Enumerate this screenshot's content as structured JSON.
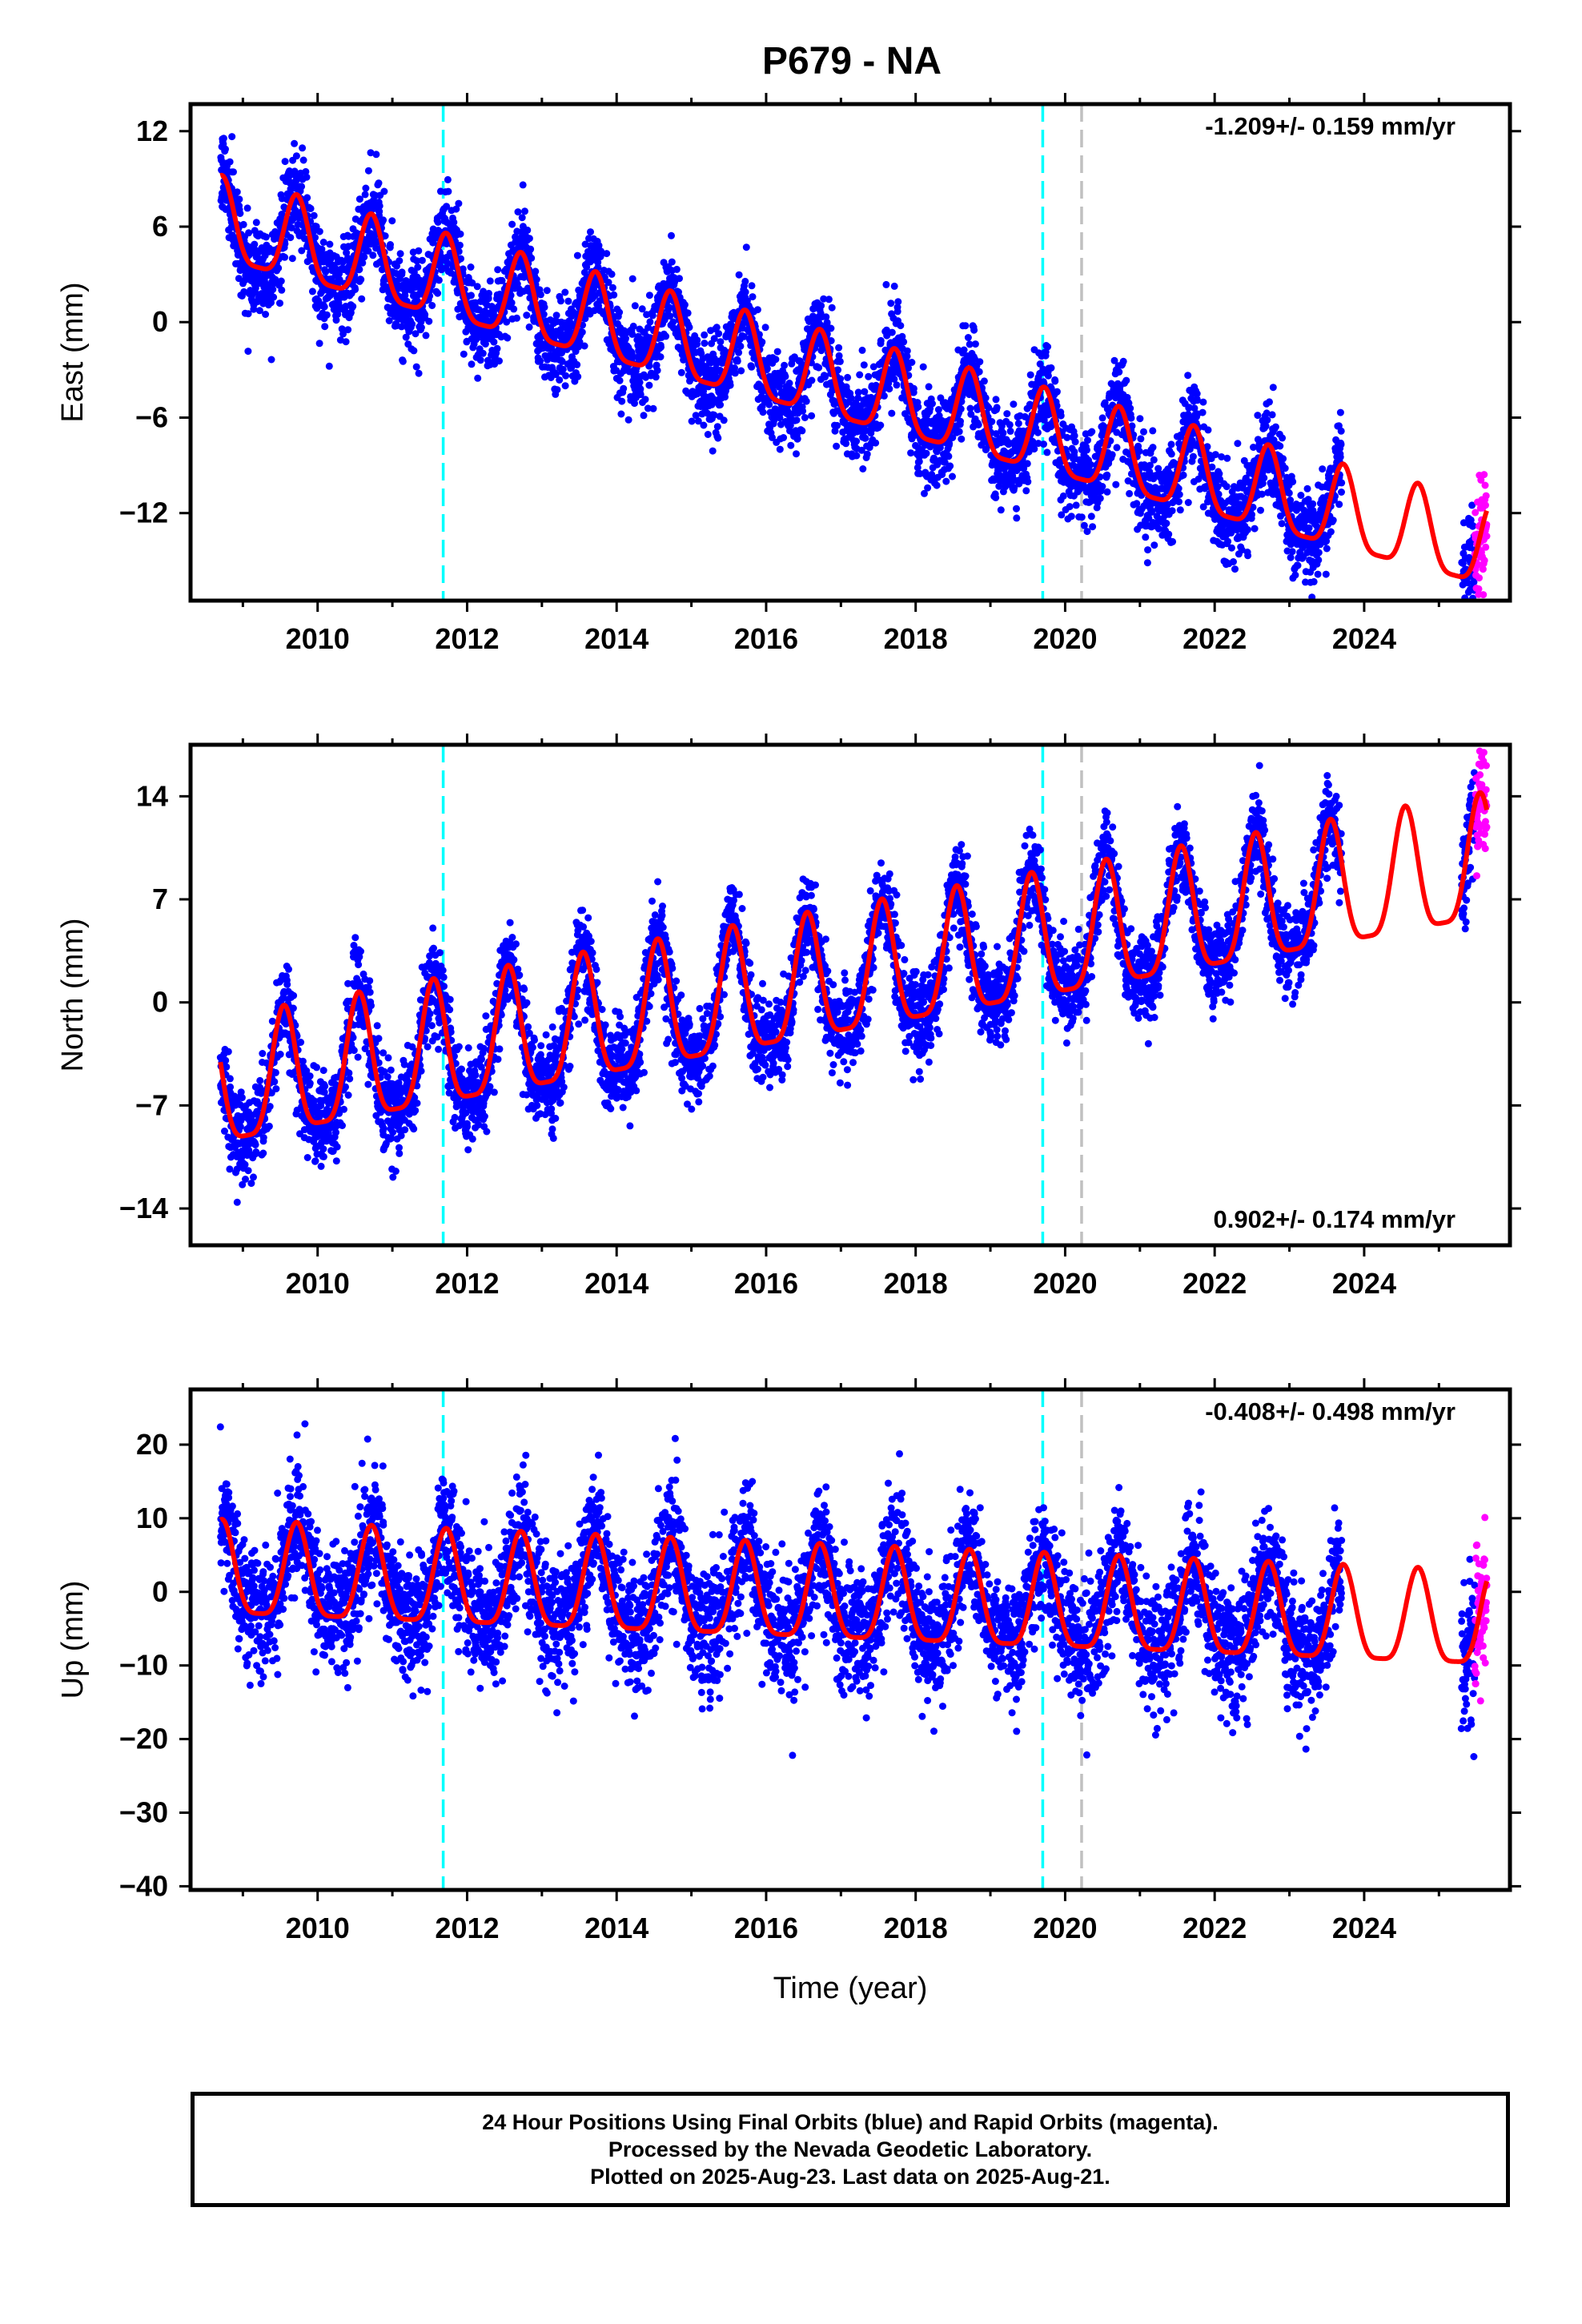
{
  "title": "P679 - NA",
  "colors": {
    "final_points": "#0000ff",
    "rapid_points": "#ff00ff",
    "model": "#ff0000",
    "equipment_change": "#00ffff",
    "event": "#c0c0c0"
  },
  "chart_data": [
    {
      "type": "scatter",
      "panel": "east",
      "ylabel": "East (mm)",
      "xlabel": "",
      "xlim": [
        2008.3,
        2025.95
      ],
      "ylim": [
        -17.5,
        13.7
      ],
      "xticks": [
        2010,
        2012,
        2014,
        2016,
        2018,
        2020,
        2022,
        2024
      ],
      "yticks": [
        12,
        6,
        0,
        -6,
        -12
      ],
      "ytick_labels": [
        "12",
        "6",
        "0",
        "−6",
        "−12"
      ],
      "velocity_label": "-1.209+/- 0.159 mm/yr",
      "velocity_position": "top-right",
      "trend": {
        "intercept_at_2008_7": 6.0,
        "rate_mm_per_yr": -1.209,
        "annual_amplitude": 2.6,
        "annual_peak_phase": 0.72
      },
      "final_orbits_data_range": [
        2008.7,
        2023.7
      ],
      "rapid_orbits_data_range": [
        2025.3,
        2025.64
      ],
      "scatter_spread_mm": 1.4,
      "model_curve_range": [
        2008.7,
        2025.64
      ],
      "equipment_changes": [
        2011.68,
        2019.7
      ],
      "events": [
        2020.22
      ]
    },
    {
      "type": "scatter",
      "panel": "north",
      "ylabel": "North (mm)",
      "xlabel": "",
      "xlim": [
        2008.3,
        2025.95
      ],
      "ylim": [
        -16.5,
        17.5
      ],
      "xticks": [
        2010,
        2012,
        2014,
        2016,
        2018,
        2020,
        2022,
        2024
      ],
      "yticks": [
        14,
        7,
        0,
        -7,
        -14
      ],
      "ytick_labels": [
        "14",
        "7",
        "0",
        "−7",
        "−14"
      ],
      "velocity_label": "0.902+/- 0.174 mm/yr",
      "velocity_position": "bottom-right",
      "trend": {
        "intercept_at_2008_7": -6.2,
        "rate_mm_per_yr": 0.902,
        "annual_amplitude": 4.2,
        "annual_peak_phase": 0.55
      },
      "final_orbits_data_range": [
        2008.7,
        2023.7
      ],
      "rapid_orbits_data_range": [
        2025.3,
        2025.64
      ],
      "scatter_spread_mm": 1.5,
      "model_curve_range": [
        2008.7,
        2025.64
      ],
      "equipment_changes": [
        2011.68,
        2019.7
      ],
      "events": [
        2020.22
      ]
    },
    {
      "type": "scatter",
      "panel": "up",
      "ylabel": "Up (mm)",
      "xlabel": "Time (year)",
      "xlim": [
        2008.3,
        2025.95
      ],
      "ylim": [
        -40.5,
        27.5
      ],
      "xticks": [
        2010,
        2012,
        2014,
        2016,
        2018,
        2020,
        2022,
        2024
      ],
      "yticks": [
        20,
        10,
        0,
        -10,
        -20,
        -30,
        -40
      ],
      "ytick_labels": [
        "20",
        "10",
        "0",
        "−10",
        "−20",
        "−30",
        "−40"
      ],
      "velocity_label": "-0.408+/- 0.498 mm/yr",
      "velocity_position": "top-right",
      "trend": {
        "intercept_at_2008_7": 2.0,
        "rate_mm_per_yr": -0.408,
        "annual_amplitude": 6.3,
        "annual_peak_phase": 0.72
      },
      "final_orbits_data_range": [
        2008.7,
        2023.7
      ],
      "rapid_orbits_data_range": [
        2025.3,
        2025.64
      ],
      "scatter_spread_mm": 4.2,
      "model_curve_range": [
        2008.7,
        2025.64
      ],
      "equipment_changes": [
        2011.68,
        2019.7
      ],
      "events": [
        2020.22
      ]
    }
  ],
  "caption": {
    "line1": "24 Hour Positions Using Final Orbits (blue) and Rapid Orbits (magenta).",
    "line2": "Processed by the Nevada Geodetic Laboratory.",
    "line3": "Plotted on 2025-Aug-23. Last data on 2025-Aug-21."
  }
}
